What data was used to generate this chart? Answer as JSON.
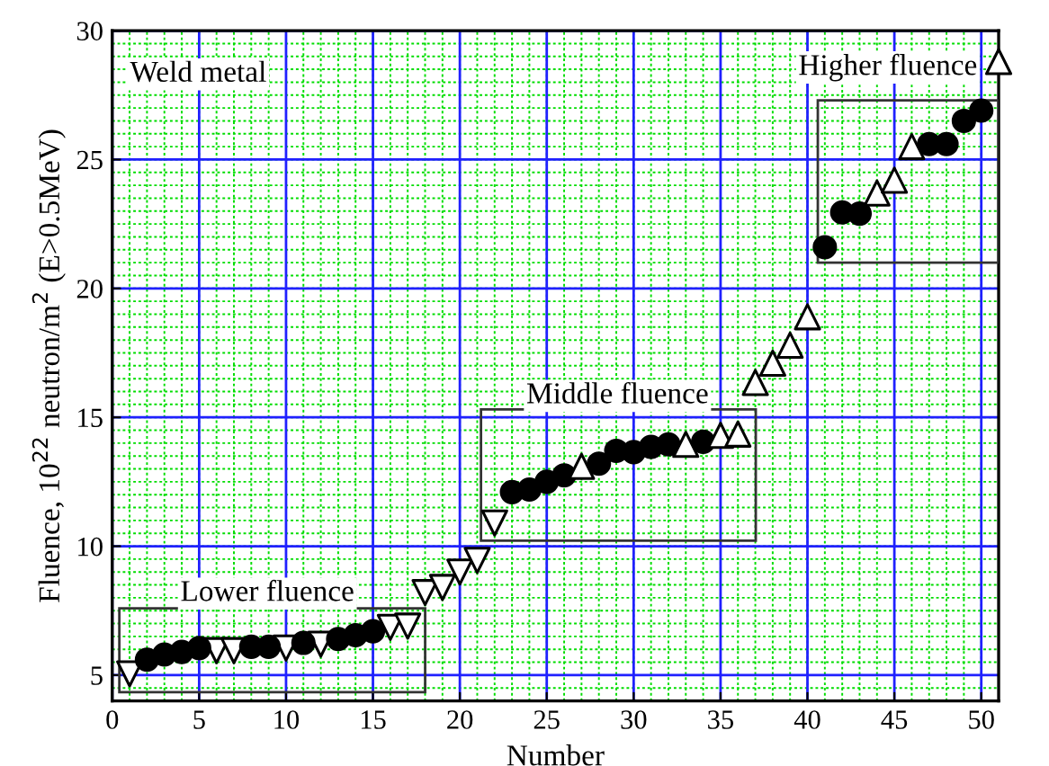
{
  "chart_data": {
    "type": "scatter",
    "xlabel": "Number",
    "ylabel": "Fluence, 10$^{22}$ neutron/m$^{2}$ (E>0.5MeV)",
    "xlim": [
      0,
      51
    ],
    "xticks": [
      0,
      5,
      10,
      15,
      20,
      25,
      30,
      35,
      40,
      45,
      50
    ],
    "ylim": [
      4,
      30
    ],
    "yticks": [
      5,
      10,
      15,
      20,
      25,
      30
    ],
    "grid": true,
    "series": [
      {
        "marker": "triangle_down",
        "color": "#000000",
        "x": [
          1,
          6,
          7,
          10,
          12,
          16,
          17,
          18,
          19,
          20,
          21,
          22
        ],
        "values": [
          5.05,
          5.95,
          5.95,
          6.05,
          6.2,
          6.85,
          6.9,
          8.2,
          8.4,
          9.0,
          9.45,
          10.9
        ]
      },
      {
        "marker": "circle",
        "color": "#000000",
        "x": [
          2,
          3,
          4,
          5,
          8,
          9,
          11,
          13,
          14,
          15,
          23,
          24,
          25,
          26,
          28,
          29,
          30,
          31,
          32,
          34,
          41,
          42,
          43,
          47,
          48,
          49,
          50
        ],
        "values": [
          5.6,
          5.8,
          5.9,
          6.05,
          6.1,
          6.1,
          6.25,
          6.4,
          6.55,
          6.7,
          12.1,
          12.2,
          12.5,
          12.75,
          13.2,
          13.7,
          13.65,
          13.85,
          13.95,
          14.05,
          21.6,
          22.95,
          22.9,
          25.6,
          25.6,
          26.5,
          26.9
        ]
      },
      {
        "marker": "triangle",
        "color": "#000000",
        "x": [
          27,
          33,
          35,
          36,
          37,
          38,
          39,
          40,
          44,
          45,
          46,
          51
        ],
        "values": [
          13.1,
          13.95,
          14.3,
          14.35,
          16.35,
          17.1,
          17.8,
          18.9,
          23.7,
          24.2,
          25.5,
          28.8
        ]
      }
    ],
    "annotations": [
      "Weld metal",
      "Lower fluence",
      "Middle fluence",
      "Higher fluence"
    ]
  }
}
